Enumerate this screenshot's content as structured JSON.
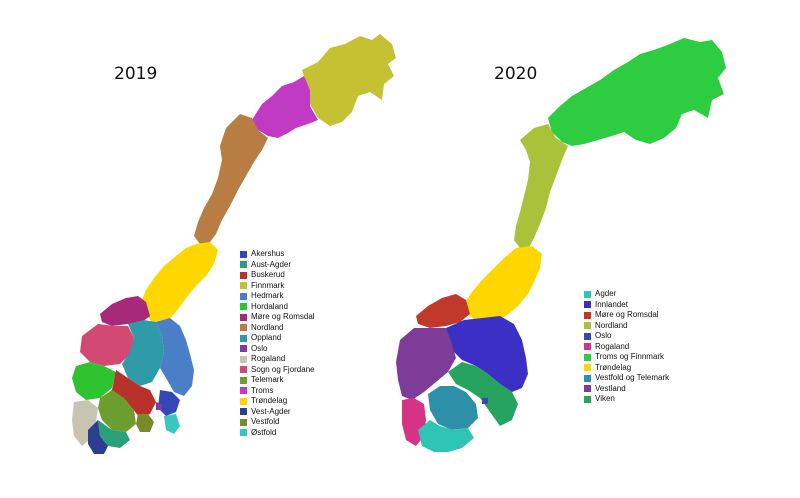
{
  "maps": [
    {
      "year": "2019",
      "legend": [
        {
          "name": "Akershus",
          "color": "#3347b8"
        },
        {
          "name": "Aust-Agder",
          "color": "#2aa079"
        },
        {
          "name": "Buskerud",
          "color": "#b8322b"
        },
        {
          "name": "Finnmark",
          "color": "#c4c232"
        },
        {
          "name": "Hedmark",
          "color": "#4a7fc7"
        },
        {
          "name": "Hordaland",
          "color": "#2ec42f"
        },
        {
          "name": "Møre og Romsdal",
          "color": "#a8287a"
        },
        {
          "name": "Nordland",
          "color": "#b77d42"
        },
        {
          "name": "Oppland",
          "color": "#2f9aa8"
        },
        {
          "name": "Oslo",
          "color": "#7a3aa8"
        },
        {
          "name": "Rogaland",
          "color": "#c9c3b2"
        },
        {
          "name": "Sogn og Fjordane",
          "color": "#d24a73"
        },
        {
          "name": "Telemark",
          "color": "#6b9e2f"
        },
        {
          "name": "Troms",
          "color": "#c13ac4"
        },
        {
          "name": "Trøndelag",
          "color": "#ffd700"
        },
        {
          "name": "Vest-Agder",
          "color": "#2b3f8f"
        },
        {
          "name": "Vestfold",
          "color": "#7a8a2a"
        },
        {
          "name": "Østfold",
          "color": "#38c6c0"
        }
      ]
    },
    {
      "year": "2020",
      "legend": [
        {
          "name": "Agder",
          "color": "#2ec4b6"
        },
        {
          "name": "Innlandet",
          "color": "#3b2fc4"
        },
        {
          "name": "Møre og Romsdal",
          "color": "#c0392b"
        },
        {
          "name": "Nordland",
          "color": "#a9c23a"
        },
        {
          "name": "Oslo",
          "color": "#3a4aa8"
        },
        {
          "name": "Rogaland",
          "color": "#d63384"
        },
        {
          "name": "Troms og Finnmark",
          "color": "#2ecc40"
        },
        {
          "name": "Trøndelag",
          "color": "#ffd700"
        },
        {
          "name": "Vestfold og Telemark",
          "color": "#2d8fa8"
        },
        {
          "name": "Vestland",
          "color": "#7d3c98"
        },
        {
          "name": "Viken",
          "color": "#27a360"
        }
      ]
    }
  ]
}
